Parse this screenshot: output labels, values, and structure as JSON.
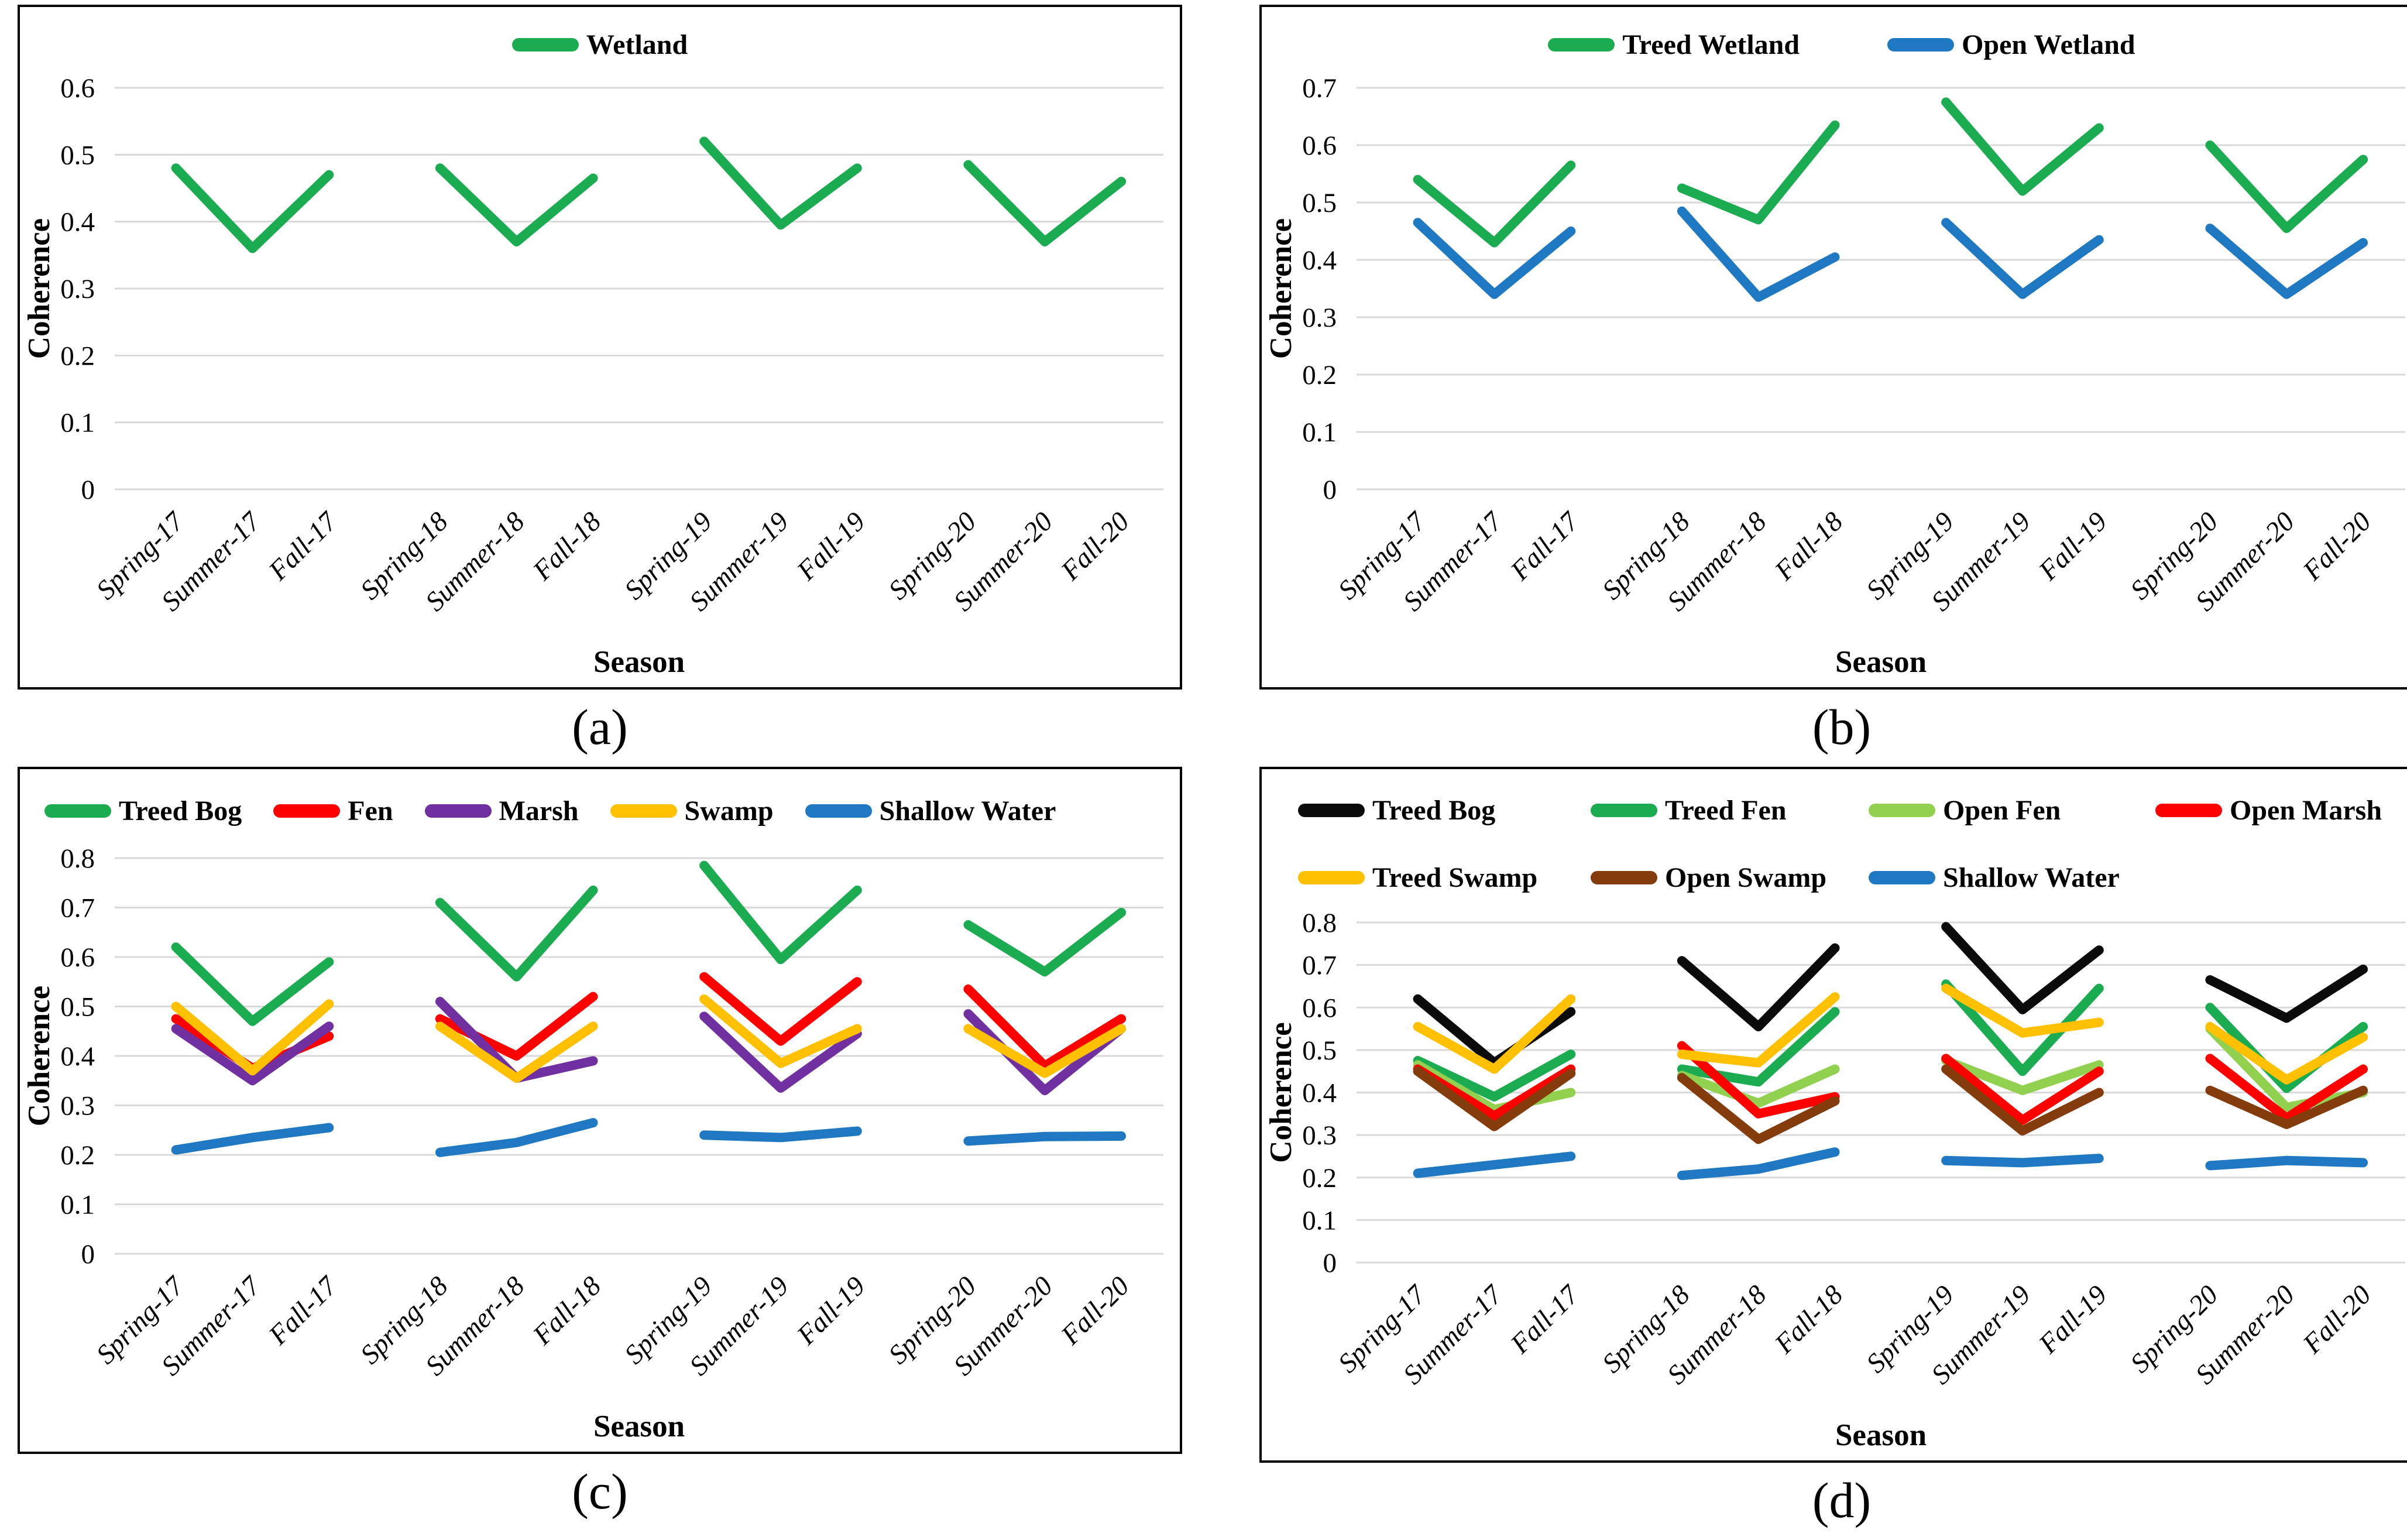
{
  "figure_panels": {
    "a": "(a)",
    "b": "(b)",
    "c": "(c)",
    "d": "(d)"
  },
  "grid_color": "#D9D9D9",
  "chart_data": [
    {
      "panel_label": "(a)",
      "type": "line",
      "title": "",
      "xlabel": "Season",
      "ylabel": "Coherence",
      "ylim": [
        0,
        0.6
      ],
      "ytick_interval": 0.1,
      "grid": "horizontal",
      "legend_position": "top-center",
      "line_style": "segmented-by-year",
      "categories": [
        "Spring-17",
        "Summer-17",
        "Fall-17",
        "Spring-18",
        "Summer-18",
        "Fall-18",
        "Spring-19",
        "Summer-19",
        "Fall-19",
        "Spring-20",
        "Summer-20",
        "Fall-20"
      ],
      "series": [
        {
          "name": "Wetland",
          "color": "#1BAB50",
          "values": [
            0.48,
            0.36,
            0.47,
            0.48,
            0.37,
            0.465,
            0.52,
            0.395,
            0.48,
            0.485,
            0.37,
            0.46
          ]
        }
      ]
    },
    {
      "panel_label": "(b)",
      "type": "line",
      "title": "",
      "xlabel": "Season",
      "ylabel": "Coherence",
      "ylim": [
        0,
        0.7
      ],
      "ytick_interval": 0.1,
      "grid": "horizontal",
      "legend_position": "top-center",
      "line_style": "segmented-by-year",
      "categories": [
        "Spring-17",
        "Summer-17",
        "Fall-17",
        "Spring-18",
        "Summer-18",
        "Fall-18",
        "Spring-19",
        "Summer-19",
        "Fall-19",
        "Spring-20",
        "Summer-20",
        "Fall-20"
      ],
      "series": [
        {
          "name": "Treed Wetland",
          "color": "#1BAB50",
          "values": [
            0.54,
            0.43,
            0.565,
            0.525,
            0.47,
            0.635,
            0.675,
            0.52,
            0.63,
            0.6,
            0.455,
            0.575
          ]
        },
        {
          "name": "Open Wetland",
          "color": "#1E78C2",
          "values": [
            0.465,
            0.34,
            0.45,
            0.485,
            0.335,
            0.405,
            0.465,
            0.34,
            0.435,
            0.455,
            0.34,
            0.43
          ]
        }
      ]
    },
    {
      "panel_label": "(c)",
      "type": "line",
      "title": "",
      "xlabel": "Season",
      "ylabel": "Coherence",
      "ylim": [
        0,
        0.8
      ],
      "ytick_interval": 0.1,
      "grid": "horizontal",
      "legend_position": "top-left-row",
      "line_style": "segmented-by-year",
      "categories": [
        "Spring-17",
        "Summer-17",
        "Fall-17",
        "Spring-18",
        "Summer-18",
        "Fall-18",
        "Spring-19",
        "Summer-19",
        "Fall-19",
        "Spring-20",
        "Summer-20",
        "Fall-20"
      ],
      "series": [
        {
          "name": "Treed Bog",
          "color": "#1BAB50",
          "values": [
            0.62,
            0.47,
            0.59,
            0.71,
            0.56,
            0.735,
            0.785,
            0.595,
            0.735,
            0.665,
            0.57,
            0.69
          ]
        },
        {
          "name": "Fen",
          "color": "#FE0000",
          "values": [
            0.475,
            0.375,
            0.44,
            0.475,
            0.4,
            0.52,
            0.56,
            0.43,
            0.55,
            0.535,
            0.38,
            0.475
          ]
        },
        {
          "name": "Marsh",
          "color": "#7030A0",
          "values": [
            0.455,
            0.35,
            0.46,
            0.51,
            0.355,
            0.39,
            0.48,
            0.335,
            0.445,
            0.485,
            0.33,
            0.455
          ]
        },
        {
          "name": "Swamp",
          "color": "#FFC000",
          "values": [
            0.5,
            0.37,
            0.505,
            0.46,
            0.355,
            0.46,
            0.515,
            0.385,
            0.455,
            0.455,
            0.365,
            0.455
          ]
        },
        {
          "name": "Shallow Water",
          "color": "#1E78C2",
          "values": [
            0.21,
            0.235,
            0.255,
            0.205,
            0.225,
            0.265,
            0.24,
            0.235,
            0.248,
            0.228,
            0.237,
            0.238
          ]
        }
      ]
    },
    {
      "panel_label": "(d)",
      "type": "line",
      "title": "",
      "xlabel": "Season",
      "ylabel": "Coherence",
      "ylim": [
        0,
        0.8
      ],
      "ytick_interval": 0.1,
      "grid": "horizontal",
      "legend_position": "top-grid-2-rows",
      "line_style": "segmented-by-year",
      "categories": [
        "Spring-17",
        "Summer-17",
        "Fall-17",
        "Spring-18",
        "Summer-18",
        "Fall-18",
        "Spring-19",
        "Summer-19",
        "Fall-19",
        "Spring-20",
        "Summer-20",
        "Fall-20"
      ],
      "series": [
        {
          "name": "Treed Bog",
          "color": "#0B0B0B",
          "values": [
            0.62,
            0.47,
            0.59,
            0.71,
            0.555,
            0.74,
            0.79,
            0.595,
            0.735,
            0.665,
            0.575,
            0.69
          ]
        },
        {
          "name": "Treed Fen",
          "color": "#1BAB50",
          "values": [
            0.475,
            0.39,
            0.49,
            0.455,
            0.425,
            0.59,
            0.655,
            0.45,
            0.645,
            0.6,
            0.41,
            0.555
          ]
        },
        {
          "name": "Open Fen",
          "color": "#92D050",
          "values": [
            0.465,
            0.36,
            0.4,
            0.44,
            0.375,
            0.455,
            0.475,
            0.405,
            0.465,
            0.55,
            0.365,
            0.4
          ]
        },
        {
          "name": "Open Marsh",
          "color": "#FE0000",
          "values": [
            0.455,
            0.345,
            0.455,
            0.51,
            0.35,
            0.39,
            0.48,
            0.335,
            0.45,
            0.48,
            0.34,
            0.455
          ]
        },
        {
          "name": "Treed Swamp",
          "color": "#FFC000",
          "values": [
            0.555,
            0.455,
            0.62,
            0.49,
            0.47,
            0.625,
            0.645,
            0.54,
            0.565,
            0.555,
            0.43,
            0.53
          ]
        },
        {
          "name": "Open Swamp",
          "color": "#843C0C",
          "values": [
            0.45,
            0.32,
            0.445,
            0.435,
            0.29,
            0.38,
            0.455,
            0.31,
            0.4,
            0.405,
            0.325,
            0.405
          ]
        },
        {
          "name": "Shallow Water",
          "color": "#1E78C2",
          "values": [
            0.21,
            0.23,
            0.25,
            0.205,
            0.22,
            0.26,
            0.24,
            0.235,
            0.245,
            0.228,
            0.24,
            0.235
          ]
        }
      ]
    }
  ]
}
